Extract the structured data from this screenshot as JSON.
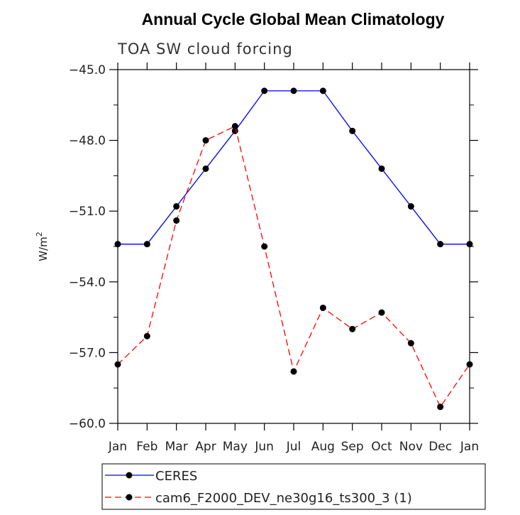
{
  "chart_data": {
    "type": "line",
    "title": "Annual Cycle Global Mean Climatology",
    "subtitle": "TOA SW cloud forcing",
    "xlabel": "",
    "ylabel": "W/m",
    "ylabel_superscript": "2",
    "ylim": [
      -60.0,
      -45.0
    ],
    "yticks": [
      -60.0,
      -57.0,
      -54.0,
      -51.0,
      -48.0,
      -45.0
    ],
    "ytick_labels": [
      "−60.0",
      "−57.0",
      "−54.0",
      "−51.0",
      "−48.0",
      "−45.0"
    ],
    "categories": [
      "Jan",
      "Feb",
      "Mar",
      "Apr",
      "May",
      "Jun",
      "Jul",
      "Aug",
      "Sep",
      "Oct",
      "Nov",
      "Dec",
      "Jan"
    ],
    "series": [
      {
        "name": "CERES",
        "color": "#0000ff",
        "dash": "solid",
        "values": [
          -52.4,
          -52.4,
          -50.8,
          -49.2,
          -47.6,
          -45.9,
          -45.9,
          -45.9,
          -47.6,
          -49.2,
          -50.8,
          -52.4,
          -52.4
        ]
      },
      {
        "name": "cam6_F2000_DEV_ne30g16_ts300_3 (1)",
        "color": "#ff0000",
        "dash": "dashed",
        "values": [
          -57.5,
          -56.3,
          -51.4,
          -48.0,
          -47.4,
          -52.5,
          -57.8,
          -55.1,
          -56.0,
          -55.3,
          -56.6,
          -59.3,
          -57.5
        ]
      }
    ],
    "marker_color": "#000000",
    "legend_position": "bottom"
  }
}
